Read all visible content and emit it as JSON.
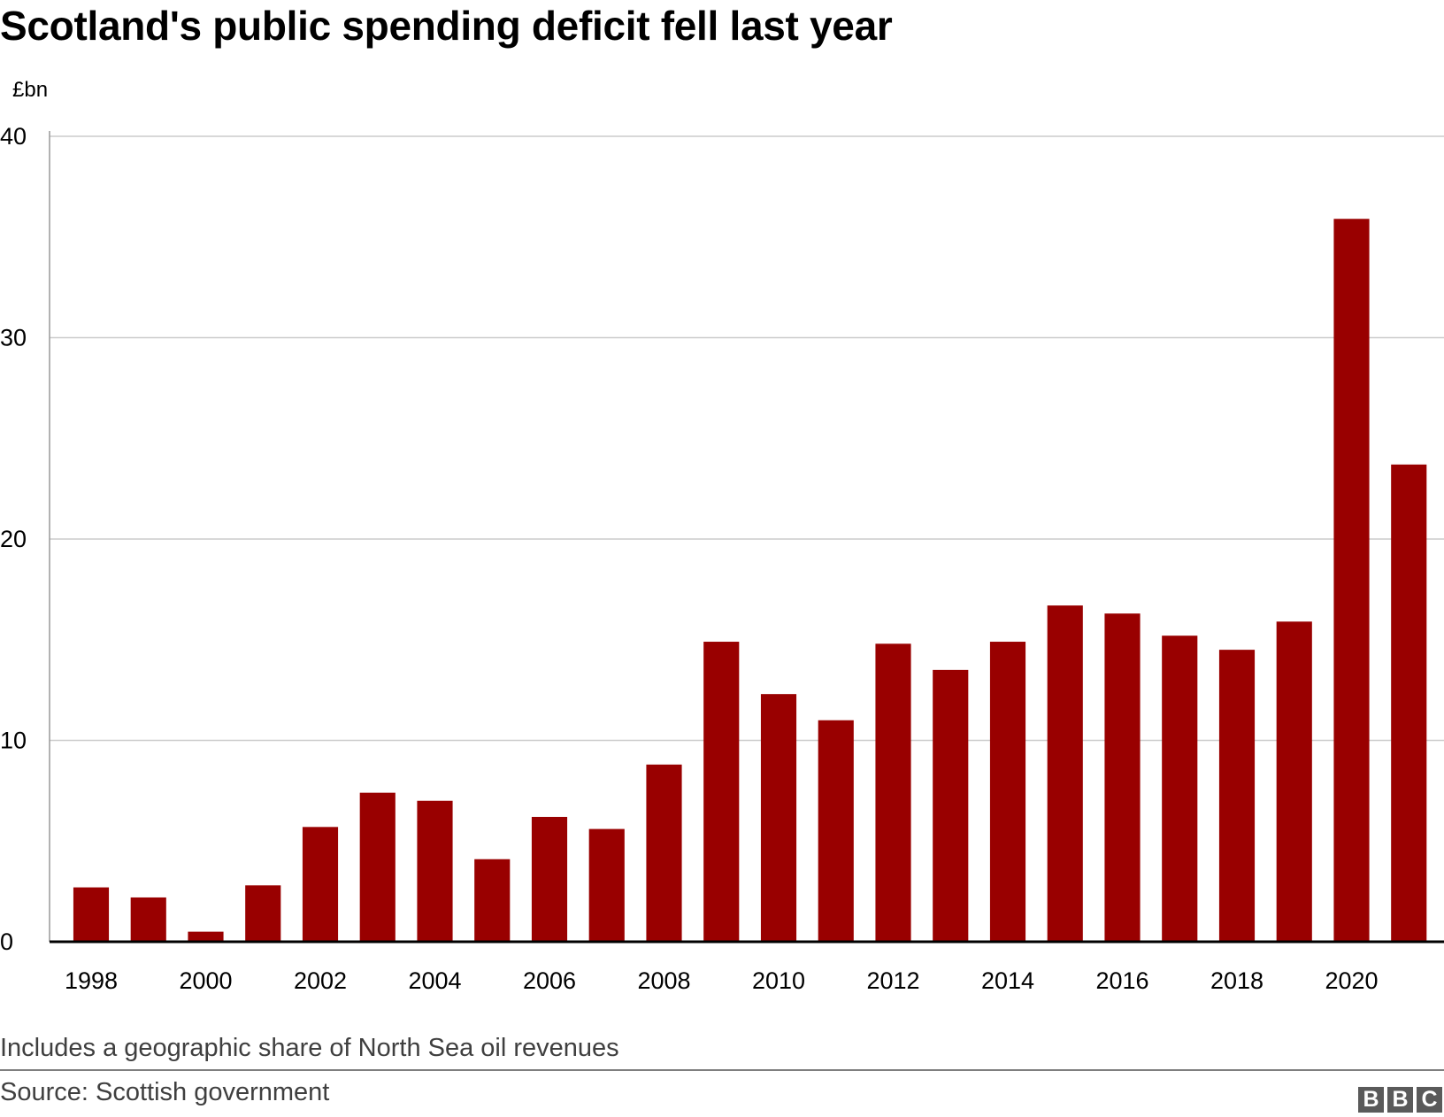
{
  "chart_data": {
    "type": "bar",
    "title": "Scotland's public spending deficit fell last year",
    "unit_label": "£bn",
    "ylim": [
      0,
      40
    ],
    "yticks": [
      0,
      10,
      20,
      30,
      40
    ],
    "grid": true,
    "categories": [
      1998,
      1999,
      2000,
      2001,
      2002,
      2003,
      2004,
      2005,
      2006,
      2007,
      2008,
      2009,
      2010,
      2011,
      2012,
      2013,
      2014,
      2015,
      2016,
      2017,
      2018,
      2019,
      2020,
      2021
    ],
    "xtick_labels": [
      "1998",
      "2000",
      "2002",
      "2004",
      "2006",
      "2008",
      "2010",
      "2012",
      "2014",
      "2016",
      "2018",
      "2020"
    ],
    "values": [
      2.7,
      2.2,
      0.5,
      2.8,
      5.7,
      7.4,
      7.0,
      4.1,
      6.2,
      5.6,
      8.8,
      14.9,
      12.3,
      11.0,
      14.8,
      13.5,
      14.9,
      16.7,
      16.3,
      15.2,
      14.5,
      15.9,
      35.9,
      23.7
    ],
    "bar_color": "#990000",
    "note": "Includes a geographic share of North Sea oil revenues",
    "source": "Source: Scottish government"
  },
  "branding": {
    "logo": [
      "B",
      "B",
      "C"
    ]
  }
}
